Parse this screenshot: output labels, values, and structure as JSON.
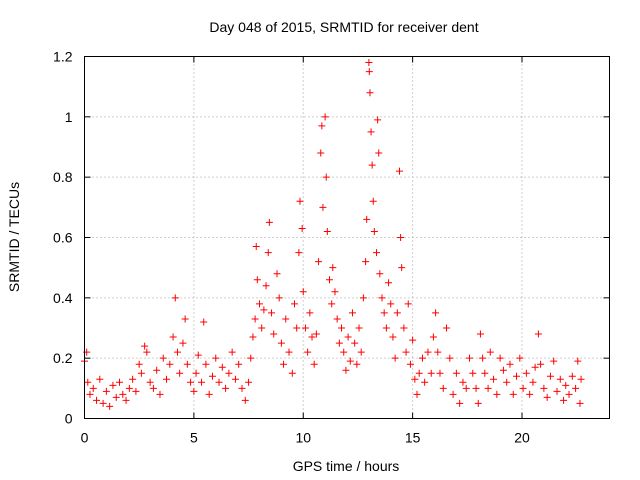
{
  "chart_data": {
    "type": "scatter",
    "title": "Day 048 of 2015, SRMTID for receiver dent",
    "xlabel": "GPS time / hours",
    "ylabel": "SRMTID / TECUs",
    "xlim": [
      0,
      24
    ],
    "ylim": [
      0,
      1.2
    ],
    "xticks": [
      0,
      5,
      10,
      15,
      20
    ],
    "xtick_labels": [
      "0",
      "5",
      "10",
      "15",
      "20"
    ],
    "yticks": [
      0,
      0.2,
      0.4,
      0.6,
      0.8,
      1.0,
      1.2
    ],
    "ytick_labels": [
      "0",
      "0.2",
      "0.4",
      "0.6",
      "0.8",
      "1",
      "1.2"
    ],
    "grid": true,
    "marker": "+",
    "color": "#ff0000",
    "series": [
      {
        "name": "SRMTID",
        "points": [
          [
            0.0,
            0.19
          ],
          [
            0.1,
            0.22
          ],
          [
            0.15,
            0.12
          ],
          [
            0.25,
            0.08
          ],
          [
            0.4,
            0.1
          ],
          [
            0.55,
            0.06
          ],
          [
            0.7,
            0.13
          ],
          [
            0.85,
            0.05
          ],
          [
            1.0,
            0.09
          ],
          [
            1.15,
            0.04
          ],
          [
            1.3,
            0.11
          ],
          [
            1.45,
            0.07
          ],
          [
            1.6,
            0.12
          ],
          [
            1.75,
            0.08
          ],
          [
            1.9,
            0.06
          ],
          [
            2.05,
            0.1
          ],
          [
            2.2,
            0.13
          ],
          [
            2.35,
            0.09
          ],
          [
            2.5,
            0.18
          ],
          [
            2.6,
            0.15
          ],
          [
            2.75,
            0.24
          ],
          [
            2.85,
            0.22
          ],
          [
            3.0,
            0.12
          ],
          [
            3.15,
            0.1
          ],
          [
            3.3,
            0.16
          ],
          [
            3.45,
            0.08
          ],
          [
            3.6,
            0.2
          ],
          [
            3.75,
            0.13
          ],
          [
            3.9,
            0.18
          ],
          [
            4.05,
            0.27
          ],
          [
            4.15,
            0.4
          ],
          [
            4.25,
            0.22
          ],
          [
            4.35,
            0.15
          ],
          [
            4.5,
            0.25
          ],
          [
            4.6,
            0.33
          ],
          [
            4.7,
            0.18
          ],
          [
            4.85,
            0.12
          ],
          [
            5.0,
            0.09
          ],
          [
            5.1,
            0.15
          ],
          [
            5.2,
            0.21
          ],
          [
            5.35,
            0.12
          ],
          [
            5.45,
            0.32
          ],
          [
            5.55,
            0.18
          ],
          [
            5.7,
            0.08
          ],
          [
            5.85,
            0.14
          ],
          [
            6.0,
            0.2
          ],
          [
            6.15,
            0.12
          ],
          [
            6.3,
            0.17
          ],
          [
            6.45,
            0.1
          ],
          [
            6.6,
            0.15
          ],
          [
            6.75,
            0.22
          ],
          [
            6.9,
            0.13
          ],
          [
            7.05,
            0.18
          ],
          [
            7.2,
            0.1
          ],
          [
            7.35,
            0.06
          ],
          [
            7.5,
            0.12
          ],
          [
            7.6,
            0.2
          ],
          [
            7.7,
            0.27
          ],
          [
            7.8,
            0.33
          ],
          [
            7.85,
            0.57
          ],
          [
            7.9,
            0.46
          ],
          [
            8.0,
            0.38
          ],
          [
            8.1,
            0.3
          ],
          [
            8.2,
            0.36
          ],
          [
            8.3,
            0.44
          ],
          [
            8.4,
            0.55
          ],
          [
            8.45,
            0.65
          ],
          [
            8.55,
            0.35
          ],
          [
            8.65,
            0.28
          ],
          [
            8.8,
            0.48
          ],
          [
            8.9,
            0.4
          ],
          [
            9.0,
            0.25
          ],
          [
            9.1,
            0.18
          ],
          [
            9.2,
            0.33
          ],
          [
            9.35,
            0.22
          ],
          [
            9.5,
            0.15
          ],
          [
            9.6,
            0.38
          ],
          [
            9.7,
            0.3
          ],
          [
            9.8,
            0.55
          ],
          [
            9.85,
            0.72
          ],
          [
            9.95,
            0.63
          ],
          [
            10.0,
            0.42
          ],
          [
            10.1,
            0.3
          ],
          [
            10.2,
            0.22
          ],
          [
            10.3,
            0.35
          ],
          [
            10.4,
            0.27
          ],
          [
            10.5,
            0.18
          ],
          [
            10.6,
            0.28
          ],
          [
            10.7,
            0.52
          ],
          [
            10.8,
            0.88
          ],
          [
            10.85,
            0.97
          ],
          [
            10.9,
            0.7
          ],
          [
            11.0,
            1.0
          ],
          [
            11.05,
            0.8
          ],
          [
            11.1,
            0.62
          ],
          [
            11.2,
            0.46
          ],
          [
            11.3,
            0.38
          ],
          [
            11.35,
            0.5
          ],
          [
            11.45,
            0.42
          ],
          [
            11.55,
            0.33
          ],
          [
            11.65,
            0.25
          ],
          [
            11.75,
            0.3
          ],
          [
            11.85,
            0.22
          ],
          [
            11.95,
            0.16
          ],
          [
            12.05,
            0.27
          ],
          [
            12.15,
            0.19
          ],
          [
            12.25,
            0.35
          ],
          [
            12.35,
            0.25
          ],
          [
            12.45,
            0.18
          ],
          [
            12.55,
            0.3
          ],
          [
            12.65,
            0.22
          ],
          [
            12.75,
            0.4
          ],
          [
            12.85,
            0.52
          ],
          [
            12.9,
            0.66
          ],
          [
            13.0,
            1.18
          ],
          [
            13.02,
            1.15
          ],
          [
            13.05,
            1.08
          ],
          [
            13.1,
            0.95
          ],
          [
            13.15,
            0.84
          ],
          [
            13.2,
            0.72
          ],
          [
            13.25,
            0.62
          ],
          [
            13.35,
            0.55
          ],
          [
            13.4,
            0.99
          ],
          [
            13.45,
            0.88
          ],
          [
            13.5,
            0.48
          ],
          [
            13.6,
            0.4
          ],
          [
            13.7,
            0.35
          ],
          [
            13.8,
            0.3
          ],
          [
            13.9,
            0.45
          ],
          [
            14.0,
            0.38
          ],
          [
            14.1,
            0.27
          ],
          [
            14.2,
            0.2
          ],
          [
            14.3,
            0.35
          ],
          [
            14.4,
            0.82
          ],
          [
            14.45,
            0.6
          ],
          [
            14.5,
            0.5
          ],
          [
            14.6,
            0.3
          ],
          [
            14.7,
            0.22
          ],
          [
            14.8,
            0.38
          ],
          [
            14.9,
            0.18
          ],
          [
            15.0,
            0.26
          ],
          [
            15.1,
            0.13
          ],
          [
            15.2,
            0.08
          ],
          [
            15.3,
            0.15
          ],
          [
            15.45,
            0.2
          ],
          [
            15.55,
            0.12
          ],
          [
            15.7,
            0.22
          ],
          [
            15.85,
            0.15
          ],
          [
            15.95,
            0.27
          ],
          [
            16.05,
            0.35
          ],
          [
            16.15,
            0.22
          ],
          [
            16.25,
            0.15
          ],
          [
            16.4,
            0.1
          ],
          [
            16.55,
            0.3
          ],
          [
            16.7,
            0.2
          ],
          [
            16.85,
            0.08
          ],
          [
            17.0,
            0.15
          ],
          [
            17.15,
            0.05
          ],
          [
            17.3,
            0.12
          ],
          [
            17.45,
            0.1
          ],
          [
            17.6,
            0.2
          ],
          [
            17.75,
            0.15
          ],
          [
            17.9,
            0.1
          ],
          [
            18.0,
            0.05
          ],
          [
            18.1,
            0.28
          ],
          [
            18.2,
            0.2
          ],
          [
            18.3,
            0.15
          ],
          [
            18.45,
            0.1
          ],
          [
            18.55,
            0.22
          ],
          [
            18.7,
            0.13
          ],
          [
            18.85,
            0.08
          ],
          [
            19.0,
            0.2
          ],
          [
            19.15,
            0.16
          ],
          [
            19.3,
            0.12
          ],
          [
            19.45,
            0.18
          ],
          [
            19.6,
            0.08
          ],
          [
            19.75,
            0.14
          ],
          [
            19.9,
            0.2
          ],
          [
            20.05,
            0.1
          ],
          [
            20.2,
            0.15
          ],
          [
            20.35,
            0.08
          ],
          [
            20.5,
            0.12
          ],
          [
            20.6,
            0.17
          ],
          [
            20.75,
            0.28
          ],
          [
            20.85,
            0.18
          ],
          [
            21.0,
            0.1
          ],
          [
            21.15,
            0.07
          ],
          [
            21.3,
            0.14
          ],
          [
            21.45,
            0.19
          ],
          [
            21.6,
            0.09
          ],
          [
            21.75,
            0.13
          ],
          [
            21.9,
            0.06
          ],
          [
            22.0,
            0.11
          ],
          [
            22.15,
            0.08
          ],
          [
            22.3,
            0.14
          ],
          [
            22.45,
            0.1
          ],
          [
            22.55,
            0.19
          ],
          [
            22.65,
            0.05
          ],
          [
            22.7,
            0.13
          ]
        ]
      }
    ]
  }
}
